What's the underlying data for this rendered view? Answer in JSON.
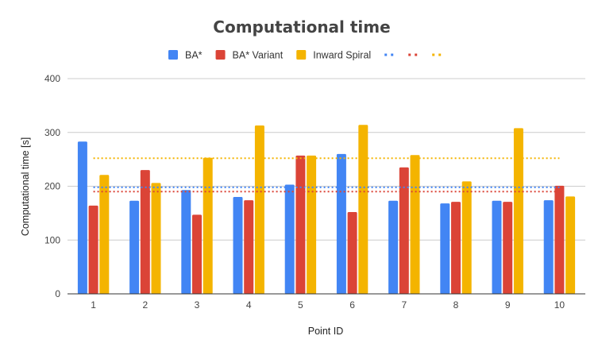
{
  "chart_data": {
    "type": "bar",
    "title": "Computational time",
    "xlabel": "Point ID",
    "ylabel": "Computational time [s]",
    "ylim": [
      0,
      400
    ],
    "yticks": [
      0,
      100,
      200,
      300,
      400
    ],
    "grid": true,
    "legend_position": "top",
    "categories": [
      "1",
      "2",
      "3",
      "4",
      "5",
      "6",
      "7",
      "8",
      "9",
      "10"
    ],
    "series": [
      {
        "name": "BA*",
        "color": "#4285f4",
        "values": [
          283,
          173,
          193,
          180,
          203,
          260,
          173,
          168,
          173,
          174
        ]
      },
      {
        "name": "BA* Variant",
        "color": "#db4437",
        "values": [
          164,
          230,
          147,
          174,
          257,
          152,
          235,
          171,
          171,
          201
        ]
      },
      {
        "name": "Inward Spiral",
        "color": "#f4b400",
        "values": [
          221,
          206,
          253,
          313,
          257,
          314,
          258,
          209,
          308,
          181
        ]
      }
    ],
    "averages": [
      {
        "name": "",
        "color": "#4285f4",
        "value": 198
      },
      {
        "name": "",
        "color": "#db4437",
        "value": 190
      },
      {
        "name": "",
        "color": "#f4b400",
        "value": 252
      }
    ]
  }
}
